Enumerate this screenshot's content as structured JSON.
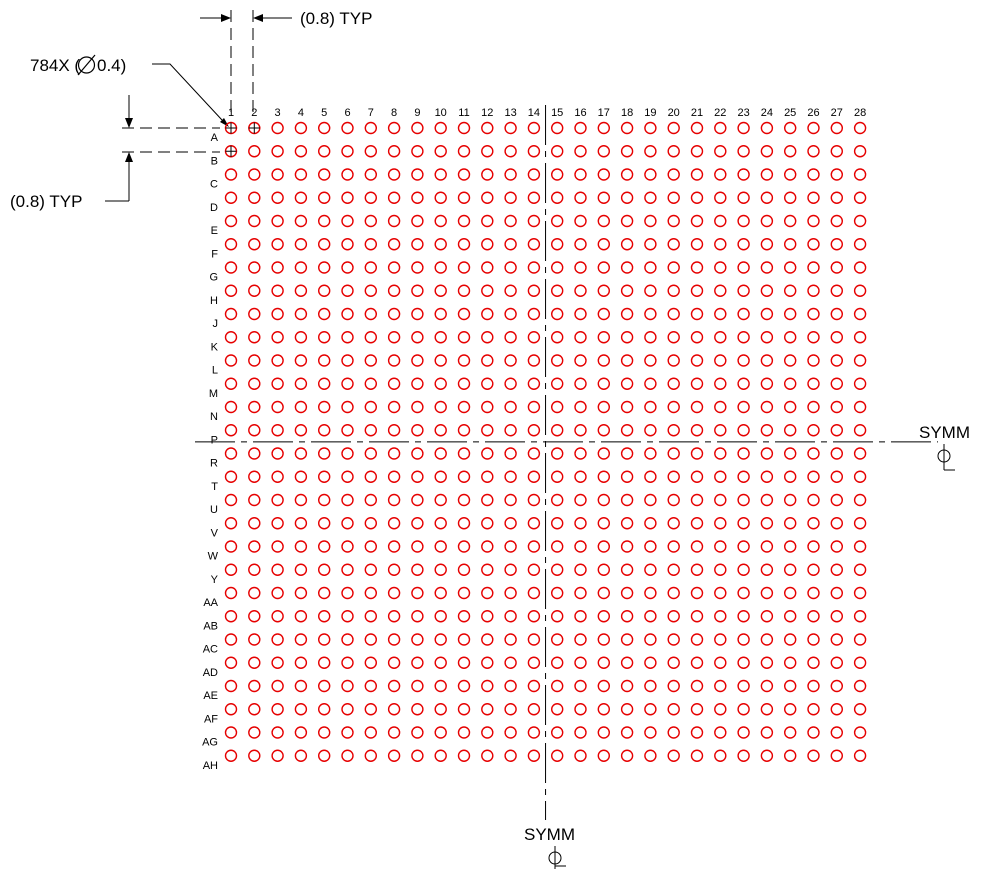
{
  "annotations": {
    "ball_count": "784X (",
    "ball_diameter": "0.4)",
    "col_pitch": "(0.8) TYP",
    "row_pitch": "(0.8) TYP",
    "symm_right": "SYMM",
    "symm_bottom": "SYMM"
  },
  "grid": {
    "columns": [
      "1",
      "2",
      "3",
      "4",
      "5",
      "6",
      "7",
      "8",
      "9",
      "10",
      "11",
      "12",
      "13",
      "14",
      "15",
      "16",
      "17",
      "18",
      "19",
      "20",
      "21",
      "22",
      "23",
      "24",
      "25",
      "26",
      "27",
      "28"
    ],
    "rows": [
      "A",
      "B",
      "C",
      "D",
      "E",
      "F",
      "G",
      "H",
      "J",
      "K",
      "L",
      "M",
      "N",
      "P",
      "R",
      "T",
      "U",
      "V",
      "W",
      "Y",
      "AA",
      "AB",
      "AC",
      "AD",
      "AE",
      "AF",
      "AG",
      "AH"
    ],
    "pad_color": "#e60000",
    "line_color": "#000000"
  }
}
